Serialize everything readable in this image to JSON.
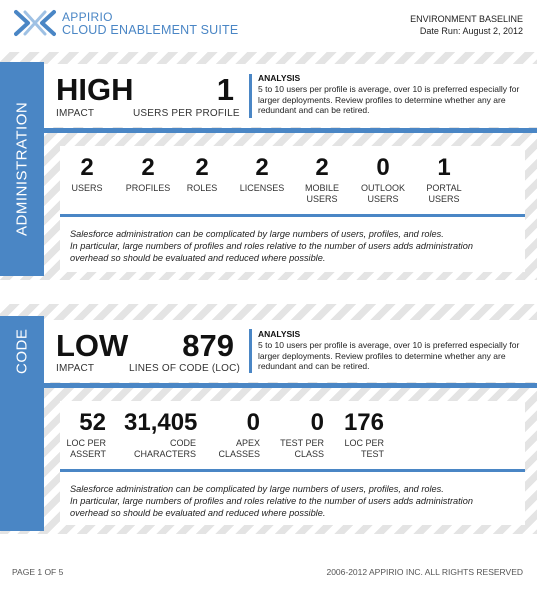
{
  "header": {
    "brand_line1": "APPIRIO",
    "brand_line2": "CLOUD ENABLEMENT SUITE",
    "env_title": "ENVIRONMENT BASELINE",
    "date_run": "Date Run: August 2, 2012"
  },
  "administration": {
    "tab_label": "ADMINISTRATION",
    "impact_value": "HIGH",
    "impact_label": "IMPACT",
    "users_per_profile_value": "1",
    "users_per_profile_label": "USERS PER PROFILE",
    "analysis_title": "ANALYSIS",
    "analysis_text": "5 to 10 users per profile is average, over 10 is preferred especially for larger deployments.  Review profiles to determine whether any are redundant and can be retired.",
    "metrics": [
      {
        "value": "2",
        "label_line1": "USERS",
        "label_line2": ""
      },
      {
        "value": "2",
        "label_line1": "PROFILES",
        "label_line2": ""
      },
      {
        "value": "2",
        "label_line1": "ROLES",
        "label_line2": ""
      },
      {
        "value": "2",
        "label_line1": "LICENSES",
        "label_line2": ""
      },
      {
        "value": "2",
        "label_line1": "MOBILE",
        "label_line2": "USERS"
      },
      {
        "value": "0",
        "label_line1": "OUTLOOK",
        "label_line2": "USERS"
      },
      {
        "value": "1",
        "label_line1": "PORTAL",
        "label_line2": "USERS"
      }
    ],
    "note_line1": "Salesforce administration can be complicated by large numbers of users, profiles, and roles.",
    "note_line2": "In particular, large numbers of profiles and roles relative to the number of users adds administration",
    "note_line3": "overhead so should be evaluated and reduced where possible."
  },
  "code": {
    "tab_label": "CODE",
    "impact_value": "LOW",
    "impact_label": "IMPACT",
    "loc_value": "879",
    "loc_label": "LINES OF CODE (LOC)",
    "analysis_title": "ANALYSIS",
    "analysis_text": "5 to 10 users per profile is average, over 10 is preferred especially for larger deployments.  Review profiles to determine whether any are redundant and can be retired.",
    "metrics": [
      {
        "value": "52",
        "label_line1": "LOC PER",
        "label_line2": "ASSERT"
      },
      {
        "value": "31,405",
        "label_line1": "CODE",
        "label_line2": "CHARACTERS"
      },
      {
        "value": "0",
        "label_line1": "APEX",
        "label_line2": "CLASSES"
      },
      {
        "value": "0",
        "label_line1": "TEST PER",
        "label_line2": "CLASS"
      },
      {
        "value": "176",
        "label_line1": "LOC PER",
        "label_line2": "TEST"
      }
    ],
    "note_line1": "Salesforce administration can be complicated by large numbers of users, profiles, and roles.",
    "note_line2": "In particular, large numbers of profiles and roles relative to the number of users adds administration",
    "note_line3": "overhead so should be evaluated and reduced where possible."
  },
  "footer": {
    "page": "PAGE 1 OF 5",
    "copyright": "2006-2012 APPIRIO INC. ALL RIGHTS RESERVED"
  },
  "colors": {
    "accent_blue": "#4a86c5",
    "text_dark": "#111111"
  }
}
